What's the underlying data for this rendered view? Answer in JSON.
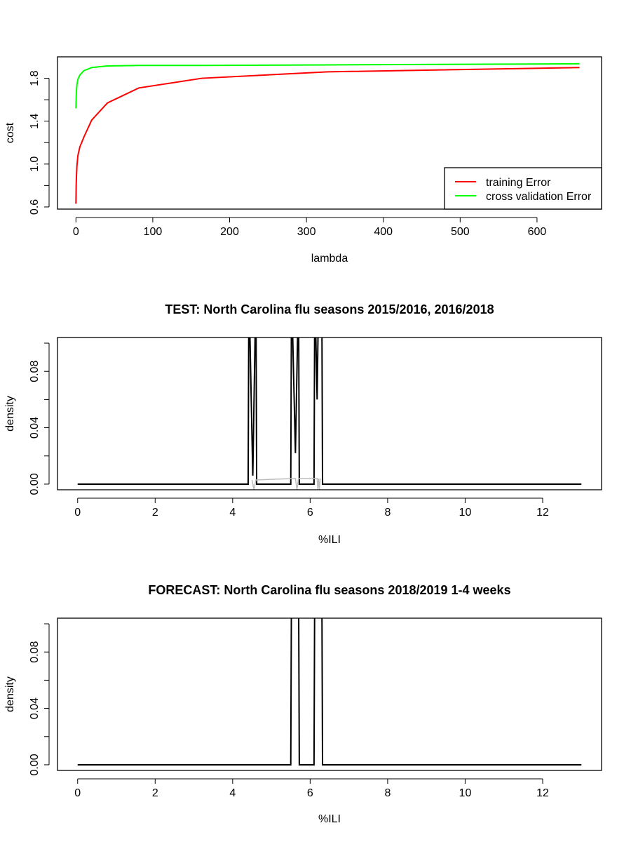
{
  "chart_data": [
    {
      "type": "line",
      "title": "",
      "xlabel": "lambda",
      "ylabel": "cost",
      "xlim": [
        -24,
        684
      ],
      "ylim": [
        0.58,
        2.0
      ],
      "x_ticks": [
        0,
        100,
        200,
        300,
        400,
        500,
        600
      ],
      "y_ticks": [
        0.6,
        0.8,
        1.0,
        1.2,
        1.4,
        1.6,
        1.8
      ],
      "y_tick_labels": [
        "0.6",
        "",
        "1.0",
        "",
        "1.4",
        "",
        "1.8"
      ],
      "legend_position": "bottom-right",
      "series": [
        {
          "name": "training Error",
          "color": "#ff0000",
          "x": [
            0,
            0.32,
            0.64,
            1.28,
            2.56,
            5.12,
            10.24,
            20.48,
            40.96,
            81.92,
            163.84,
            327.68,
            655.36
          ],
          "y": [
            0.63,
            0.8,
            0.88,
            0.98,
            1.08,
            1.16,
            1.25,
            1.41,
            1.57,
            1.71,
            1.8,
            1.86,
            1.9
          ]
        },
        {
          "name": "cross validation Error",
          "color": "#00ff00",
          "x": [
            0,
            0.32,
            0.64,
            1.28,
            2.56,
            5.12,
            10.24,
            20.48,
            40.96,
            81.92,
            163.84,
            327.68,
            655.36
          ],
          "y": [
            1.52,
            1.62,
            1.68,
            1.74,
            1.79,
            1.83,
            1.87,
            1.9,
            1.915,
            1.92,
            1.92,
            1.925,
            1.935
          ]
        }
      ]
    },
    {
      "type": "line",
      "title": "TEST: North Carolina  flu seasons 2015/2016, 2016/2018",
      "xlabel": "%ILI",
      "ylabel": "density",
      "xlim": [
        -0.52,
        13.52
      ],
      "ylim": [
        -0.004,
        0.104
      ],
      "x_ticks": [
        0,
        2,
        4,
        6,
        8,
        10,
        12
      ],
      "y_ticks": [
        0.0,
        0.02,
        0.04,
        0.06,
        0.08,
        0.1
      ],
      "y_tick_labels": [
        "0.00",
        "",
        "0.04",
        "",
        "0.08",
        ""
      ],
      "series": [
        {
          "color": "#000000",
          "x": [
            0,
            4.4,
            4.42,
            4.52,
            4.6,
            4.62,
            5.5,
            5.52,
            5.62,
            5.7,
            5.72,
            6.1,
            6.12,
            6.18,
            6.22,
            6.3,
            6.32,
            13
          ],
          "y": [
            0,
            0,
            0.14,
            0.006,
            0.14,
            0,
            0,
            0.14,
            0.022,
            0.14,
            0,
            0,
            0.14,
            0.06,
            0.14,
            0.14,
            0,
            0
          ]
        },
        {
          "color": "#bebebe",
          "x": [
            4.5,
            4.55,
            4.6,
            5.62,
            5.66,
            5.7,
            6.18,
            6.2,
            6.22,
            6.24,
            6.26
          ],
          "y": [
            0.003,
            -0.004,
            0.003,
            0.004,
            -0.004,
            0.004,
            0.004,
            -0.004,
            0.004,
            -0.004,
            0.004
          ]
        }
      ]
    },
    {
      "type": "line",
      "title": "FORECAST: North Carolina flu seasons 2018/2019 1-4 weeks",
      "xlabel": "%ILI",
      "ylabel": "density",
      "xlim": [
        -0.52,
        13.52
      ],
      "ylim": [
        -0.004,
        0.104
      ],
      "x_ticks": [
        0,
        2,
        4,
        6,
        8,
        10,
        12
      ],
      "y_ticks": [
        0.0,
        0.02,
        0.04,
        0.06,
        0.08,
        0.1
      ],
      "y_tick_labels": [
        "0.00",
        "",
        "0.04",
        "",
        "0.08",
        ""
      ],
      "series": [
        {
          "color": "#000000",
          "x": [
            0,
            5.5,
            5.52,
            5.7,
            5.72,
            6.1,
            6.12,
            6.3,
            6.32,
            13
          ],
          "y": [
            0,
            0,
            0.14,
            0.14,
            0,
            0,
            0.14,
            0.14,
            0,
            0
          ]
        }
      ]
    }
  ]
}
